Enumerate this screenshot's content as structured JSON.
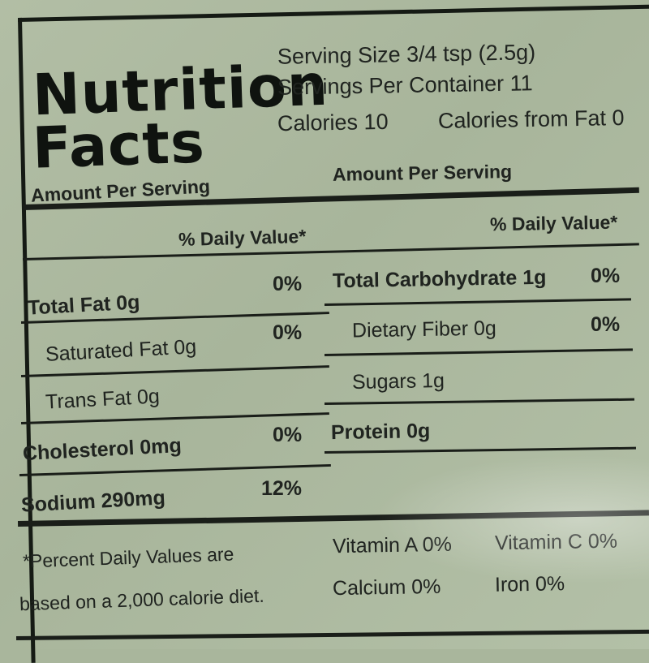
{
  "header": {
    "title_line1": "Nutrition",
    "title_line2": "Facts",
    "serving_size": "Serving Size 3/4 tsp  (2.5g)",
    "servings_per_container": "Servings Per Container 11",
    "calories": "Calories 10",
    "calories_from_fat": "Calories from Fat 0"
  },
  "left": {
    "amount_per_serving": "Amount Per Serving",
    "daily_value_header": "% Daily Value*",
    "rows": [
      {
        "label": "Total Fat 0g",
        "dv": "0%"
      },
      {
        "label": "Saturated Fat 0g",
        "dv": "0%"
      },
      {
        "label": "Trans Fat 0g",
        "dv": ""
      },
      {
        "label": "Cholesterol 0mg",
        "dv": "0%"
      },
      {
        "label": "Sodium 290mg",
        "dv": "12%"
      }
    ]
  },
  "right": {
    "amount_per_serving": "Amount Per Serving",
    "daily_value_header": "% Daily Value*",
    "rows": [
      {
        "label": "Total Carbohydrate 1g",
        "dv": "0%"
      },
      {
        "label": "Dietary Fiber 0g",
        "dv": "0%"
      },
      {
        "label": "Sugars 1g",
        "dv": ""
      },
      {
        "label": "Protein 0g",
        "dv": ""
      }
    ]
  },
  "footer": {
    "footnote_line1": "*Percent Daily Values are",
    "footnote_line2": "based on a 2,000 calorie diet.",
    "vitamin_a": "Vitamin A 0%",
    "vitamin_c": "Vitamin C 0%",
    "calcium": "Calcium 0%",
    "iron": "Iron 0%"
  }
}
